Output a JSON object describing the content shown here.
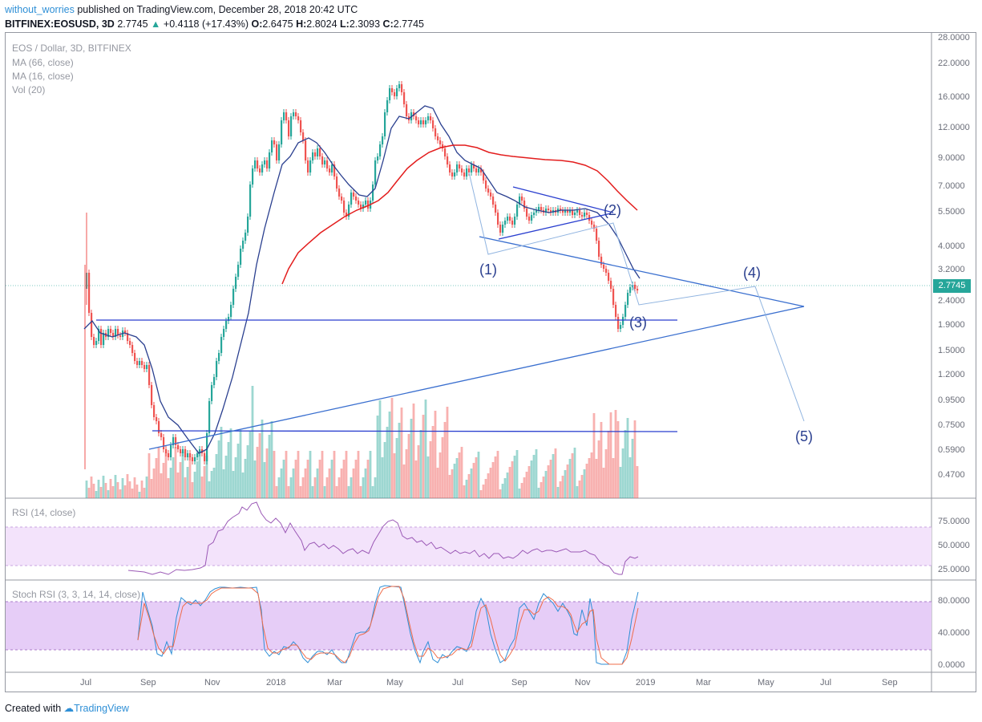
{
  "header": {
    "user": "without_worries",
    "published_text": "published on TradingView.com, December 28, 2018 20:42 UTC"
  },
  "quote": {
    "symbol": "BITFINEX:EOSUSD, 3D",
    "last": "2.7745",
    "change": "+0.4118 (+17.43%)",
    "open_label": "O:",
    "open": "2.6475",
    "high_label": "H:",
    "high": "2.8024",
    "low_label": "L:",
    "low": "2.3093",
    "close_label": "C:",
    "close": "2.7745"
  },
  "legend": {
    "instrument": "EOS / Dollar, 3D, BITFINEX",
    "ma66": "MA (66, close)",
    "ma16": "MA (16, close)",
    "vol": "Vol (20)",
    "rsi": "RSI (14, close)",
    "stoch": "Stoch RSI (3, 3, 14, 14, close)"
  },
  "price_axis_labels": [
    "28.0000",
    "22.0000",
    "16.0000",
    "12.0000",
    "9.0000",
    "7.0000",
    "5.5000",
    "4.0000",
    "3.2000",
    "2.4000",
    "1.9000",
    "1.5000",
    "1.2000",
    "0.9500",
    "0.7500",
    "0.5900",
    "0.4700"
  ],
  "current_price_tag": "2.7745",
  "rsi_axis_labels": [
    "75.0000",
    "50.0000",
    "25.0000"
  ],
  "stoch_axis_labels": [
    "80.0000",
    "40.0000",
    "0.0000"
  ],
  "time_axis_labels": [
    "Jul",
    "Sep",
    "Nov",
    "2018",
    "Mar",
    "May",
    "Jul",
    "Sep",
    "Nov",
    "2019",
    "Mar",
    "May",
    "Jul",
    "Sep"
  ],
  "wave_labels": [
    "(1)",
    "(2)",
    "(3)",
    "(4)",
    "(5)"
  ],
  "footer": {
    "created_with": "Created with",
    "brand": "TradingView"
  },
  "colors": {
    "bull": "#26a69a",
    "bear": "#ef5350",
    "ma66": "#e31d1d",
    "ma16": "#2a3f8f",
    "trendline": "#3a6fcf",
    "wave_path": "#90b4e0",
    "rsi_line": "#9b59b6",
    "rsi_band": "#f3e3fb",
    "stoch_band": "#e6cdf7",
    "stoch_k": "#2e8fd6",
    "stoch_d": "#ef6c4a"
  },
  "chart_data": {
    "type": "candlestick",
    "symbol": "EOSUSD",
    "timeframe": "3D",
    "price_scale": "log",
    "ylim": [
      0.42,
      28
    ],
    "series": [
      {
        "name": "MA (66, close)",
        "color": "#e31d1d"
      },
      {
        "name": "MA (16, close)",
        "color": "#2a3f8f"
      }
    ],
    "key_levels": [
      {
        "label": "horizontal support",
        "price": 1.97
      },
      {
        "label": "horizontal",
        "price": 0.72
      }
    ],
    "waves": [
      {
        "label": "(1)",
        "date": "2018-08",
        "price": 3.7
      },
      {
        "label": "(2)",
        "date": "2018-11",
        "price": 5.5
      },
      {
        "label": "(3)",
        "date": "2018-12",
        "price": 1.9
      },
      {
        "label": "(4)",
        "date": "2019-04",
        "price": 2.8
      },
      {
        "label": "(5)",
        "date": "2019-05",
        "price": 0.78
      }
    ]
  }
}
